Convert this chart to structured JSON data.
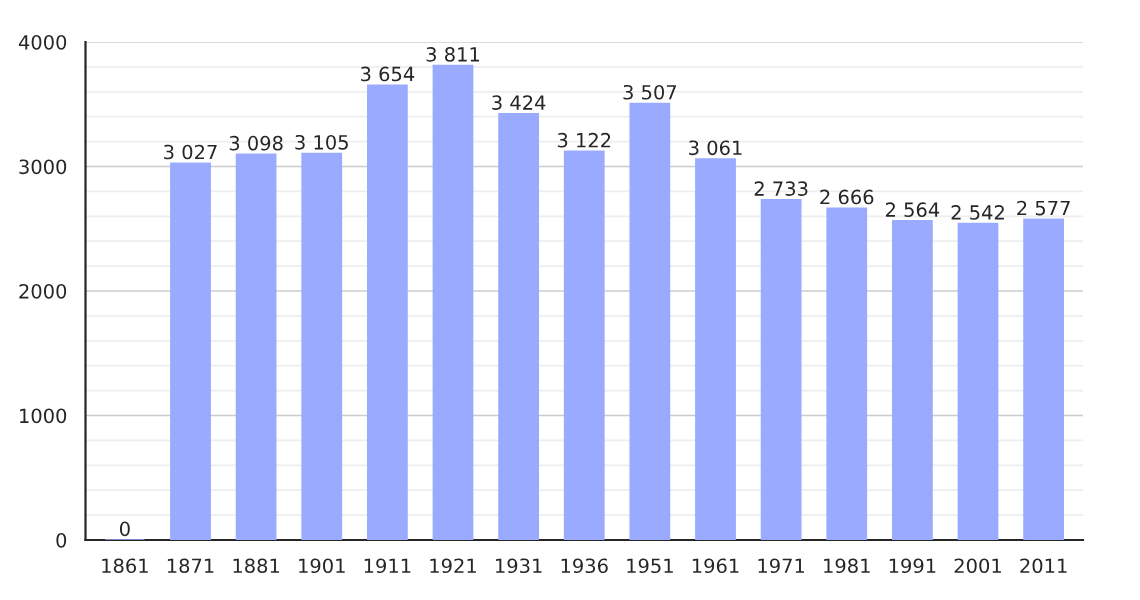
{
  "chart_data": {
    "type": "bar",
    "categories": [
      "1861",
      "1871",
      "1881",
      "1901",
      "1911",
      "1921",
      "1931",
      "1936",
      "1951",
      "1961",
      "1971",
      "1981",
      "1991",
      "2001",
      "2011"
    ],
    "values": [
      0,
      3027,
      3098,
      3105,
      3654,
      3811,
      3424,
      3122,
      3507,
      3061,
      2733,
      2666,
      2564,
      2542,
      2577
    ],
    "value_labels": [
      "0",
      "3 027",
      "3 098",
      "3 105",
      "3 654",
      "3 811",
      "3 424",
      "3 122",
      "3 507",
      "3 061",
      "2 733",
      "2 666",
      "2 564",
      "2 542",
      "2 577"
    ],
    "color": "#99aaff",
    "ylim": [
      0,
      4000
    ],
    "yticks": [
      0,
      {
        "value": 200,
        "label": null
      },
      {
        "value": 400,
        "label": null
      },
      {
        "value": 600,
        "label": null
      },
      {
        "value": 800,
        "label": null
      },
      1000,
      {
        "value": 1200,
        "label": null
      },
      {
        "value": 1400,
        "label": null
      },
      {
        "value": 1600,
        "label": null
      },
      {
        "value": 1800,
        "label": null
      },
      2000,
      {
        "value": 2200,
        "label": null
      },
      {
        "value": 2400,
        "label": null
      },
      {
        "value": 2600,
        "label": null
      },
      {
        "value": 2800,
        "label": null
      },
      3000,
      {
        "value": 3200,
        "label": null
      },
      {
        "value": 3400,
        "label": null
      },
      {
        "value": 3600,
        "label": null
      },
      {
        "value": 3800,
        "label": null
      },
      4000
    ],
    "grid": "y"
  }
}
